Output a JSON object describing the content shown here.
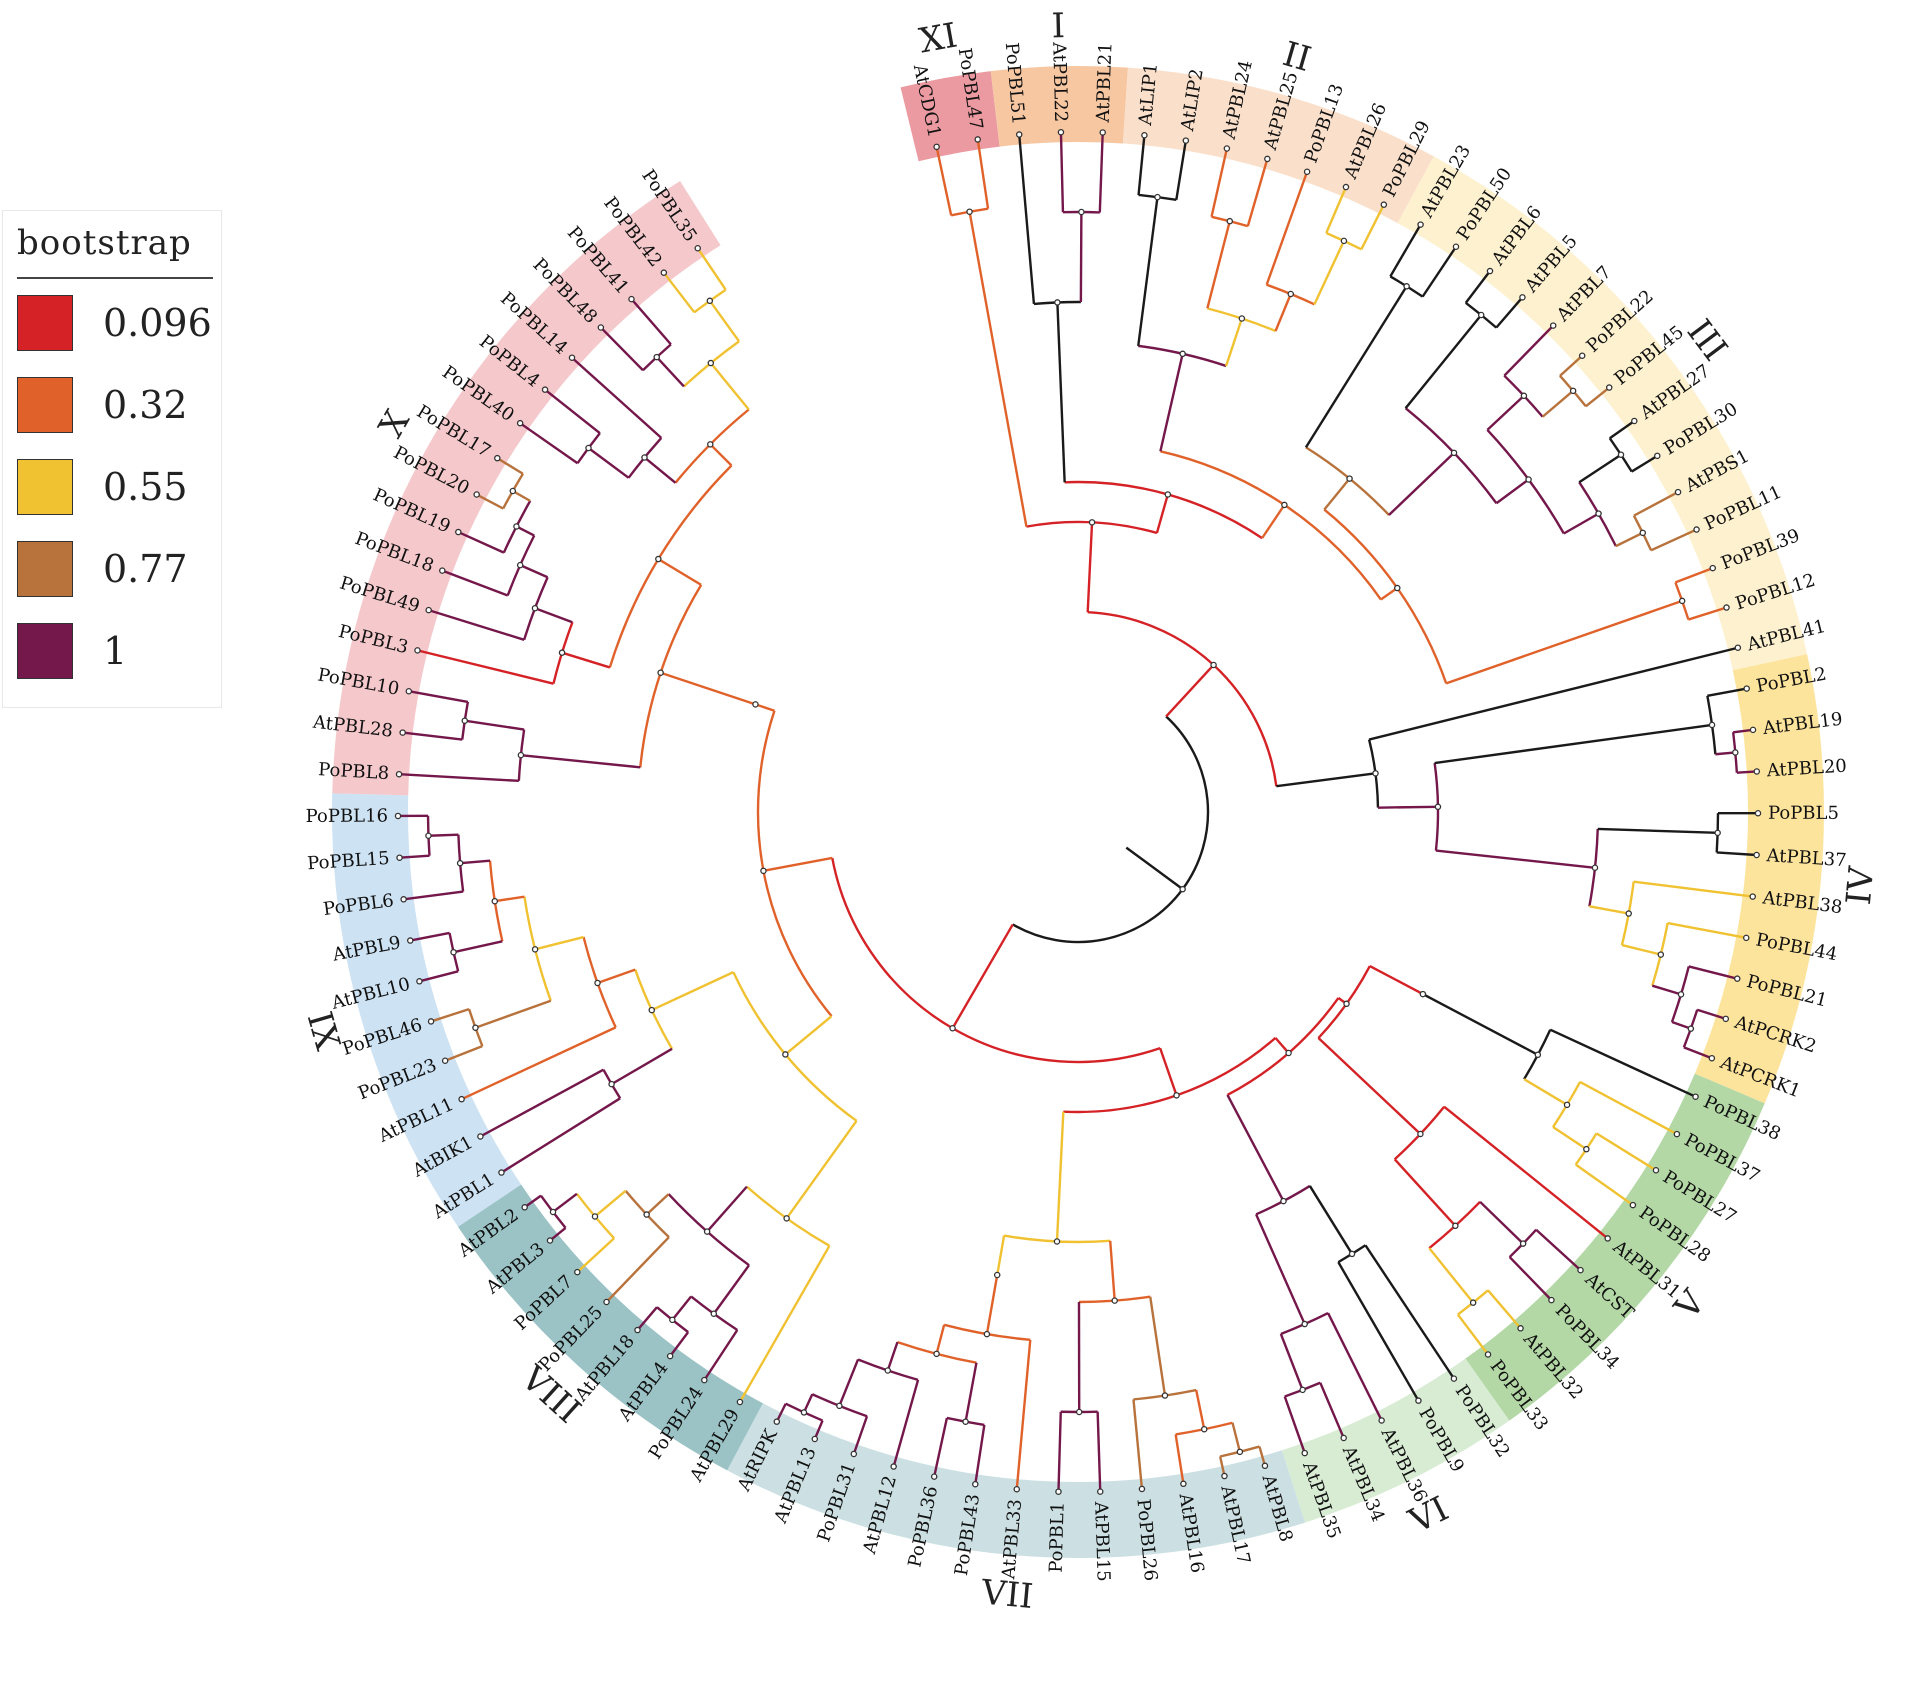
{
  "legend": {
    "title": "bootstrap",
    "items": [
      {
        "label": "0.096",
        "color": "#d42226"
      },
      {
        "label": "0.32",
        "color": "#e0622a"
      },
      {
        "label": "0.55",
        "color": "#f0c232"
      },
      {
        "label": "0.77",
        "color": "#b8723c"
      },
      {
        "label": "1",
        "color": "#74174a"
      }
    ]
  },
  "groups": [
    {
      "numeral": "XI",
      "color": "#ea9aa0",
      "leaves": [
        "AtCDG1",
        "PoPBL47"
      ]
    },
    {
      "numeral": "I",
      "color": "#f7c7a2",
      "leaves": [
        "PoPBL51",
        "AtPBL22",
        "AtPBL21"
      ]
    },
    {
      "numeral": "II",
      "color": "#fae0cb",
      "leaves": [
        "AtLIP1",
        "AtLIP2",
        "AtPBL24",
        "AtPBL25",
        "PoPBL13",
        "AtPBL26",
        "PoPBL29"
      ]
    },
    {
      "numeral": "III",
      "color": "#fdf1cf",
      "leaves": [
        "AtPBL23",
        "PoPBL50",
        "AtPBL6",
        "AtPBL5",
        "AtPBL7",
        "PoPBL22",
        "PoPBL45",
        "AtPBL27",
        "PoPBL30",
        "AtPBS1",
        "PoPBL11",
        "PoPBL39",
        "PoPBL12",
        "AtPBL41"
      ]
    },
    {
      "numeral": "IV",
      "color": "#fde49c",
      "leaves": [
        "PoPBL2",
        "AtPBL19",
        "AtPBL20",
        "PoPBL5",
        "AtPBL37",
        "AtPBL38",
        "PoPBL44",
        "PoPBL21",
        "AtPCRK2",
        "AtPCRK1"
      ]
    },
    {
      "numeral": "V",
      "color": "#b3d8a6",
      "leaves": [
        "PoPBL38",
        "PoPBL37",
        "PoPBL27",
        "PoPBL28",
        "AtPBL31",
        "AtCST",
        "PoPBL34",
        "AtPBL32",
        "PoPBL33"
      ]
    },
    {
      "numeral": "VI",
      "color": "#d8ecd4",
      "leaves": [
        "PoPBL32",
        "PoPBL9",
        "AtPBL36",
        "AtPBL34",
        "AtPBL35"
      ]
    },
    {
      "numeral": "VII",
      "color": "#cce0e3",
      "leaves": [
        "AtPBL8",
        "AtPBL17",
        "AtPBL16",
        "PoPBL26",
        "AtPBL15",
        "PoPBL1",
        "AtPBL33",
        "PoPBL43",
        "PoPBL36",
        "AtPBL12",
        "PoPBL31",
        "AtPBL13",
        "AtRIPK"
      ]
    },
    {
      "numeral": "VIII",
      "color": "#9bc3c6",
      "leaves": [
        "AtPBL29",
        "PoPBL24",
        "AtPBL4",
        "AtPBL18",
        "PoPBL25",
        "PoPBL7",
        "AtPBL3",
        "AtPBL2"
      ]
    },
    {
      "numeral": "IX",
      "color": "#cde2f3",
      "leaves": [
        "AtPBL1",
        "AtBIK1",
        "AtPBL11",
        "PoPBL23",
        "PoPBL46",
        "AtPBL10",
        "AtPBL9",
        "PoPBL6",
        "PoPBL15",
        "PoPBL16"
      ]
    },
    {
      "numeral": "X",
      "color": "#f5c9cc",
      "leaves": [
        "PoPBL8",
        "AtPBL28",
        "PoPBL10",
        "PoPBL3",
        "PoPBL49",
        "PoPBL18",
        "PoPBL19",
        "PoPBL20",
        "PoPBL17",
        "PoPBL40",
        "PoPBL4",
        "PoPBL14",
        "PoPBL48",
        "PoPBL41",
        "PoPBL42",
        "PoPBL35"
      ]
    }
  ]
}
